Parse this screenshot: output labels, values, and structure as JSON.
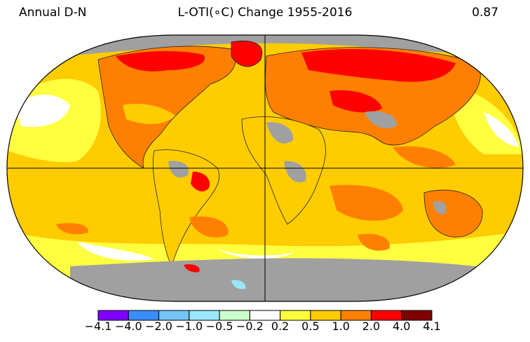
{
  "header": {
    "left": "Annual D-N",
    "center": "L-OTI(∘C) Change 1955-2016",
    "right": "0.87"
  },
  "map": {
    "projection": "Robinson",
    "missing_color": "#a0a0a0",
    "ocean_base_color": "#ffcc00"
  },
  "legend": {
    "bins": [
      {
        "color": "#8000ff"
      },
      {
        "color": "#3c8cf5"
      },
      {
        "color": "#73c3f5"
      },
      {
        "color": "#99e6fa"
      },
      {
        "color": "#ccffcc"
      },
      {
        "color": "#ffffff"
      },
      {
        "color": "#ffff40"
      },
      {
        "color": "#ffcc00"
      },
      {
        "color": "#ff8000"
      },
      {
        "color": "#ff0000"
      },
      {
        "color": "#7f0000"
      }
    ],
    "tick_labels": [
      "−4.1",
      "−4.0",
      "−2.0",
      "−1.0",
      "−0.5",
      "−0.2",
      "0.2",
      "0.5",
      "1.0",
      "2.0",
      "4.0",
      "4.1"
    ]
  }
}
